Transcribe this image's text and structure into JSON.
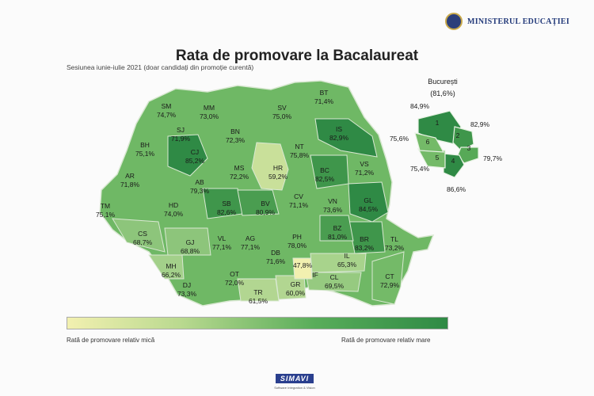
{
  "header": {
    "ministry": "MINISTERUL EDUCAȚIEI",
    "title": "Rata de promovare la Bacalaureat",
    "subtitle": "Sesiunea iunie-iulie 2021 (doar candidați din promoție curentă)"
  },
  "legend": {
    "low_label": "Rată de promovare relativ mică",
    "high_label": "Rată de promovare relativ mare",
    "colors": [
      "#f2f0b0",
      "#2f8a45"
    ]
  },
  "footer": {
    "brand": "SIMAVI",
    "tagline": "Software Integration & Vision"
  },
  "colors": {
    "low": "#f2f0b0",
    "mid": "#6fb865",
    "high": "#2f8a45",
    "border": "#d9e8d2"
  },
  "bucuresti": {
    "title": "București",
    "overall": "(81,6%)",
    "sectors": [
      {
        "id": "1",
        "value": "84,9%",
        "rate": 84.9
      },
      {
        "id": "2",
        "value": "82,9%",
        "rate": 82.9
      },
      {
        "id": "3",
        "value": "79,7%",
        "rate": 79.7
      },
      {
        "id": "4",
        "value": "86,6%",
        "rate": 86.6
      },
      {
        "id": "5",
        "value": "75,4%",
        "rate": 75.4
      },
      {
        "id": "6",
        "value": "75,6%",
        "rate": 75.6
      }
    ]
  },
  "counties": [
    {
      "code": "SM",
      "value": "74,7%",
      "rate": 74.7
    },
    {
      "code": "MM",
      "value": "73,0%",
      "rate": 73.0
    },
    {
      "code": "BT",
      "value": "71,4%",
      "rate": 71.4
    },
    {
      "code": "SV",
      "value": "75,0%",
      "rate": 75.0
    },
    {
      "code": "SJ",
      "value": "71,9%",
      "rate": 71.9
    },
    {
      "code": "BN",
      "value": "72,3%",
      "rate": 72.3
    },
    {
      "code": "IS",
      "value": "82,9%",
      "rate": 82.9
    },
    {
      "code": "BH",
      "value": "75,1%",
      "rate": 75.1
    },
    {
      "code": "CJ",
      "value": "85,2%",
      "rate": 85.2
    },
    {
      "code": "NT",
      "value": "75,8%",
      "rate": 75.8
    },
    {
      "code": "HR",
      "value": "59,2%",
      "rate": 59.2
    },
    {
      "code": "MS",
      "value": "72,2%",
      "rate": 72.2
    },
    {
      "code": "BC",
      "value": "82,5%",
      "rate": 82.5
    },
    {
      "code": "VS",
      "value": "71,2%",
      "rate": 71.2
    },
    {
      "code": "AR",
      "value": "71,8%",
      "rate": 71.8
    },
    {
      "code": "AB",
      "value": "79,3%",
      "rate": 79.3
    },
    {
      "code": "CV",
      "value": "71,1%",
      "rate": 71.1
    },
    {
      "code": "TM",
      "value": "75,1%",
      "rate": 75.1
    },
    {
      "code": "HD",
      "value": "74,0%",
      "rate": 74.0
    },
    {
      "code": "SB",
      "value": "82,6%",
      "rate": 82.6
    },
    {
      "code": "BV",
      "value": "80,9%",
      "rate": 80.9
    },
    {
      "code": "VN",
      "value": "73,6%",
      "rate": 73.6
    },
    {
      "code": "GL",
      "value": "84,5%",
      "rate": 84.5
    },
    {
      "code": "CS",
      "value": "68,7%",
      "rate": 68.7
    },
    {
      "code": "GJ",
      "value": "68,8%",
      "rate": 68.8
    },
    {
      "code": "VL",
      "value": "77,1%",
      "rate": 77.1
    },
    {
      "code": "AG",
      "value": "77,1%",
      "rate": 77.1
    },
    {
      "code": "PH",
      "value": "78,0%",
      "rate": 78.0
    },
    {
      "code": "BZ",
      "value": "81,0%",
      "rate": 81.0
    },
    {
      "code": "BR",
      "value": "83,2%",
      "rate": 83.2
    },
    {
      "code": "TL",
      "value": "73,2%",
      "rate": 73.2
    },
    {
      "code": "DB",
      "value": "71,6%",
      "rate": 71.6
    },
    {
      "code": "IF",
      "value": "47,8%",
      "rate": 47.8
    },
    {
      "code": "IL",
      "value": "65,3%",
      "rate": 65.3
    },
    {
      "code": "MH",
      "value": "66,2%",
      "rate": 66.2
    },
    {
      "code": "OT",
      "value": "72,0%",
      "rate": 72.0
    },
    {
      "code": "CL",
      "value": "69,5%",
      "rate": 69.5
    },
    {
      "code": "DJ",
      "value": "73,3%",
      "rate": 73.3
    },
    {
      "code": "TR",
      "value": "61,5%",
      "rate": 61.5
    },
    {
      "code": "GR",
      "value": "60,0%",
      "rate": 60.0
    },
    {
      "code": "CT",
      "value": "72,9%",
      "rate": 72.9
    }
  ]
}
